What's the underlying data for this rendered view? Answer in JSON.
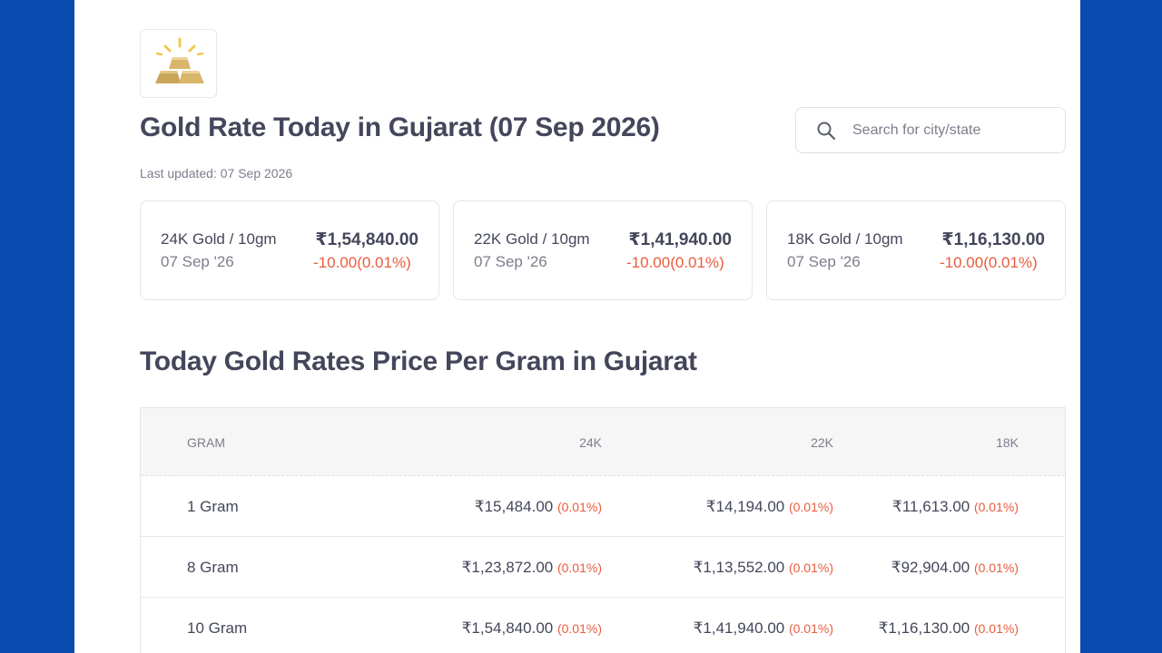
{
  "logo": {
    "icon": "gold-bars-icon"
  },
  "header": {
    "title": "Gold Rate Today in Gujarat (07 Sep 2026)",
    "last_updated": "Last updated: 07 Sep 2026"
  },
  "search": {
    "placeholder": "Search for city/state",
    "icon": "search-icon"
  },
  "cards": [
    {
      "name": "24K Gold / 10gm",
      "date": "07 Sep '26",
      "price": "₹1,54,840.00",
      "change": "-10.00(0.01%)"
    },
    {
      "name": "22K Gold / 10gm",
      "date": "07 Sep '26",
      "price": "₹1,41,940.00",
      "change": "-10.00(0.01%)"
    },
    {
      "name": "18K Gold / 10gm",
      "date": "07 Sep '26",
      "price": "₹1,16,130.00",
      "change": "-10.00(0.01%)"
    }
  ],
  "section": {
    "title": "Today Gold Rates Price Per Gram in Gujarat"
  },
  "table": {
    "headers": {
      "gram": "GRAM",
      "k24": "24K",
      "k22": "22K",
      "k18": "18K"
    },
    "rows": [
      {
        "gram": "1 Gram",
        "k24": "₹15,484.00",
        "k24_pct": "(0.01%)",
        "k22": "₹14,194.00",
        "k22_pct": "(0.01%)",
        "k18": "₹11,613.00",
        "k18_pct": "(0.01%)"
      },
      {
        "gram": "8 Gram",
        "k24": "₹1,23,872.00",
        "k24_pct": "(0.01%)",
        "k22": "₹1,13,552.00",
        "k22_pct": "(0.01%)",
        "k18": "₹92,904.00",
        "k18_pct": "(0.01%)"
      },
      {
        "gram": "10 Gram",
        "k24": "₹1,54,840.00",
        "k24_pct": "(0.01%)",
        "k22": "₹1,41,940.00",
        "k22_pct": "(0.01%)",
        "k18": "₹1,16,130.00",
        "k18_pct": "(0.01%)"
      }
    ]
  },
  "colors": {
    "page_bg": "#0a4bb0",
    "text": "#44475b",
    "muted": "#7c7e8c",
    "negative": "#eb5b3c",
    "gold": "#d9b66c"
  }
}
